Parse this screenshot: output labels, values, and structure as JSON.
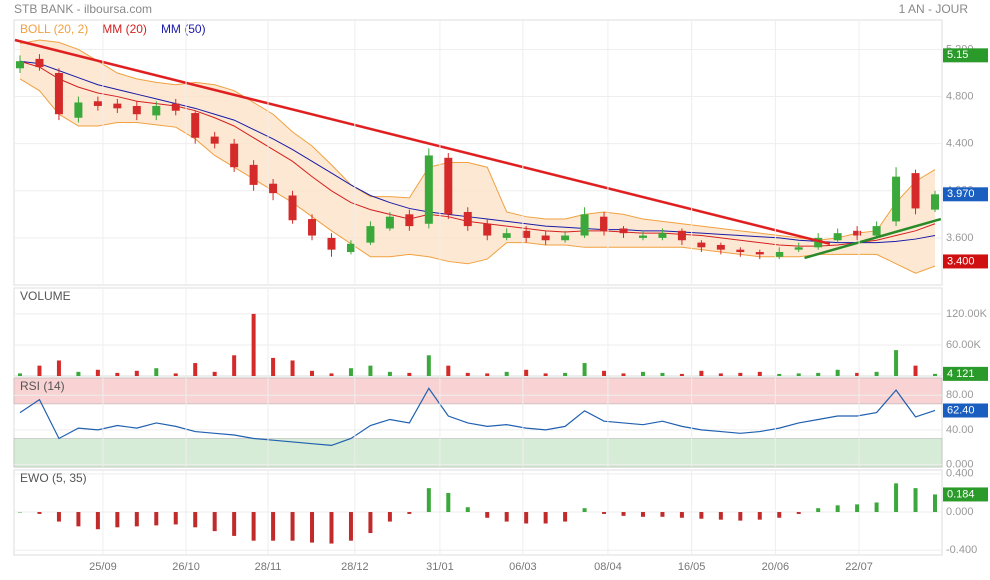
{
  "header": {
    "title": "STB BANK - ilboursa.com",
    "period": "1 AN - JOUR"
  },
  "chart_data": [
    {
      "type": "candlestick",
      "xlim": [
        0,
        47
      ],
      "ylim": [
        3.2,
        5.45
      ],
      "yticks": [
        {
          "value": 3.6,
          "label": "3.600"
        },
        {
          "value": 4.0,
          "label": "4.000"
        },
        {
          "value": 4.4,
          "label": "4.400"
        },
        {
          "value": 4.8,
          "label": "4.800"
        },
        {
          "value": 5.2,
          "label": "5.200"
        }
      ],
      "open": [
        5.04,
        5.12,
        5.0,
        4.62,
        4.76,
        4.74,
        4.72,
        4.64,
        4.74,
        4.66,
        4.46,
        4.4,
        4.22,
        4.06,
        3.96,
        3.76,
        3.6,
        3.48,
        3.56,
        3.68,
        3.8,
        3.72,
        4.28,
        3.82,
        3.72,
        3.6,
        3.66,
        3.62,
        3.58,
        3.62,
        3.78,
        3.68,
        3.6,
        3.6,
        3.66,
        3.56,
        3.54,
        3.5,
        3.48,
        3.44,
        3.5,
        3.52,
        3.58,
        3.66,
        3.62,
        3.74,
        4.15,
        3.84
      ],
      "high": [
        5.15,
        5.16,
        5.04,
        4.8,
        4.8,
        4.78,
        4.76,
        4.76,
        4.78,
        4.68,
        4.5,
        4.44,
        4.26,
        4.1,
        4.0,
        3.8,
        3.64,
        3.58,
        3.74,
        3.82,
        3.84,
        4.36,
        4.32,
        3.86,
        3.76,
        3.68,
        3.7,
        3.66,
        3.66,
        3.86,
        3.82,
        3.7,
        3.66,
        3.68,
        3.68,
        3.58,
        3.56,
        3.52,
        3.5,
        3.52,
        3.56,
        3.64,
        3.68,
        3.7,
        3.74,
        4.2,
        4.18,
        4.0
      ],
      "low": [
        5.0,
        5.02,
        4.6,
        4.58,
        4.68,
        4.66,
        4.6,
        4.6,
        4.64,
        4.4,
        4.36,
        4.16,
        4.0,
        3.92,
        3.72,
        3.58,
        3.44,
        3.46,
        3.54,
        3.66,
        3.66,
        3.68,
        3.76,
        3.66,
        3.58,
        3.58,
        3.56,
        3.54,
        3.56,
        3.6,
        3.62,
        3.6,
        3.58,
        3.58,
        3.54,
        3.48,
        3.46,
        3.44,
        3.42,
        3.42,
        3.48,
        3.5,
        3.56,
        3.58,
        3.6,
        3.7,
        3.8,
        3.82
      ],
      "close": [
        5.1,
        5.05,
        4.65,
        4.75,
        4.72,
        4.7,
        4.65,
        4.72,
        4.68,
        4.45,
        4.4,
        4.2,
        4.05,
        3.98,
        3.75,
        3.62,
        3.5,
        3.55,
        3.7,
        3.78,
        3.7,
        4.3,
        3.8,
        3.7,
        3.62,
        3.64,
        3.6,
        3.58,
        3.62,
        3.8,
        3.66,
        3.64,
        3.62,
        3.64,
        3.58,
        3.52,
        3.5,
        3.48,
        3.46,
        3.48,
        3.52,
        3.6,
        3.64,
        3.62,
        3.7,
        4.12,
        3.85,
        3.97
      ],
      "up_color": "#3aa83a",
      "down_color": "#d42a2a",
      "bollinger": {
        "name": "BOLL (20, 2)",
        "color": "#f0a040",
        "fill": "#fde3c8",
        "upper": [
          5.25,
          5.28,
          5.26,
          5.2,
          5.1,
          5.0,
          4.95,
          4.92,
          4.9,
          4.92,
          4.9,
          4.85,
          4.75,
          4.65,
          4.5,
          4.38,
          4.22,
          4.05,
          3.95,
          3.95,
          3.94,
          4.2,
          4.24,
          4.24,
          4.2,
          3.82,
          3.78,
          3.76,
          3.76,
          3.8,
          3.82,
          3.8,
          3.76,
          3.74,
          3.72,
          3.7,
          3.68,
          3.66,
          3.64,
          3.62,
          3.6,
          3.58,
          3.6,
          3.64,
          3.66,
          3.9,
          4.08,
          4.18
        ],
        "lower": [
          4.95,
          4.85,
          4.65,
          4.55,
          4.55,
          4.58,
          4.58,
          4.56,
          4.54,
          4.44,
          4.3,
          4.2,
          4.1,
          4.0,
          3.9,
          3.78,
          3.66,
          3.55,
          3.44,
          3.44,
          3.46,
          3.44,
          3.4,
          3.38,
          3.42,
          3.56,
          3.56,
          3.54,
          3.54,
          3.52,
          3.52,
          3.52,
          3.52,
          3.52,
          3.52,
          3.5,
          3.48,
          3.46,
          3.44,
          3.44,
          3.44,
          3.46,
          3.46,
          3.46,
          3.46,
          3.38,
          3.3,
          3.36
        ]
      },
      "series": [
        {
          "name": "MM (20)",
          "color": "#d42020",
          "values": [
            5.1,
            5.05,
            4.95,
            4.88,
            4.83,
            4.8,
            4.76,
            4.74,
            4.72,
            4.68,
            4.62,
            4.55,
            4.45,
            4.35,
            4.25,
            4.12,
            4.0,
            3.9,
            3.84,
            3.8,
            3.76,
            3.8,
            3.78,
            3.74,
            3.72,
            3.7,
            3.68,
            3.66,
            3.65,
            3.66,
            3.66,
            3.65,
            3.64,
            3.64,
            3.63,
            3.62,
            3.6,
            3.58,
            3.56,
            3.54,
            3.53,
            3.53,
            3.54,
            3.56,
            3.58,
            3.62,
            3.66,
            3.72
          ]
        },
        {
          "name": "MM (50)",
          "color": "#1a1aa8",
          "values": [
            5.1,
            5.08,
            5.02,
            4.96,
            4.9,
            4.86,
            4.82,
            4.78,
            4.74,
            4.7,
            4.65,
            4.6,
            4.52,
            4.44,
            4.35,
            4.25,
            4.15,
            4.05,
            3.96,
            3.9,
            3.85,
            3.82,
            3.8,
            3.78,
            3.76,
            3.74,
            3.72,
            3.7,
            3.69,
            3.68,
            3.67,
            3.67,
            3.66,
            3.66,
            3.65,
            3.64,
            3.63,
            3.62,
            3.61,
            3.6,
            3.58,
            3.57,
            3.56,
            3.56,
            3.56,
            3.57,
            3.59,
            3.62
          ]
        }
      ],
      "trendlines": [
        {
          "color": "#e02020",
          "x": [
            -0.26,
            41.6
          ],
          "y": [
            5.28,
            3.55
          ]
        },
        {
          "color": "#2a8a2a",
          "x": [
            40.3,
            47.3
          ],
          "y": [
            3.43,
            3.76
          ]
        }
      ],
      "last_labels": [
        {
          "value": 5.15,
          "label": "5.15",
          "color": "#2a9a2a"
        },
        {
          "value": 3.97,
          "label": "3.970",
          "color": "#1a5fc0"
        },
        {
          "value": 3.4,
          "label": "3.400",
          "color": "#d01010"
        }
      ]
    },
    {
      "type": "bar",
      "title": "VOLUME",
      "xlim": [
        0,
        47
      ],
      "ylim": [
        0,
        170000
      ],
      "yticks": [
        {
          "value": 60000,
          "label": "60.00K"
        },
        {
          "value": 120000,
          "label": "120.00K"
        }
      ],
      "values": [
        5000,
        20000,
        30000,
        8000,
        12000,
        6000,
        10000,
        15000,
        5000,
        25000,
        8000,
        40000,
        120000,
        35000,
        30000,
        10000,
        5000,
        15000,
        20000,
        8000,
        6000,
        40000,
        20000,
        6000,
        5000,
        8000,
        12000,
        5000,
        6000,
        25000,
        10000,
        5000,
        8000,
        6000,
        4000,
        10000,
        5000,
        6000,
        8000,
        4000,
        5000,
        6000,
        12000,
        6000,
        8000,
        50000,
        20000,
        4121
      ],
      "last_labels": [
        {
          "value": 4121,
          "label": "4 121",
          "color": "#2a9a2a"
        }
      ]
    },
    {
      "type": "line",
      "title": "RSI (14)",
      "color": "#2060b0",
      "xlim": [
        0,
        47
      ],
      "ylim": [
        -3,
        100
      ],
      "yticks": [
        {
          "value": 0,
          "label": "0.000"
        },
        {
          "value": 40,
          "label": "40.00"
        },
        {
          "value": 80,
          "label": "80.00"
        }
      ],
      "bands": [
        {
          "from": 70,
          "to": 100,
          "color": "#f9d3d3"
        },
        {
          "from": -3,
          "to": 30,
          "color": "#d6ecd6"
        }
      ],
      "values": [
        60,
        75,
        30,
        42,
        40,
        45,
        42,
        48,
        44,
        38,
        36,
        34,
        30,
        28,
        26,
        24,
        22,
        30,
        45,
        52,
        48,
        88,
        56,
        48,
        44,
        46,
        42,
        40,
        44,
        62,
        50,
        48,
        46,
        50,
        44,
        40,
        38,
        36,
        38,
        42,
        48,
        52,
        56,
        56,
        60,
        86,
        55,
        62.4
      ],
      "last_labels": [
        {
          "value": 62.4,
          "label": "62.40",
          "color": "#1a5fc0"
        }
      ]
    },
    {
      "type": "bar",
      "title": "EWO (5, 35)",
      "xlim": [
        0,
        47
      ],
      "ylim": [
        -0.45,
        0.44
      ],
      "yticks": [
        {
          "value": -0.4,
          "label": "-0.400"
        },
        {
          "value": 0,
          "label": "0.000"
        },
        {
          "value": 0.4,
          "label": "0.400"
        }
      ],
      "values": [
        0,
        -0.02,
        -0.1,
        -0.15,
        -0.18,
        -0.16,
        -0.15,
        -0.14,
        -0.13,
        -0.16,
        -0.2,
        -0.25,
        -0.3,
        -0.3,
        -0.3,
        -0.32,
        -0.33,
        -0.3,
        -0.22,
        -0.1,
        -0.02,
        0.25,
        0.2,
        0.05,
        -0.06,
        -0.1,
        -0.12,
        -0.12,
        -0.1,
        0.04,
        -0.02,
        -0.04,
        -0.05,
        -0.05,
        -0.06,
        -0.07,
        -0.08,
        -0.09,
        -0.08,
        -0.06,
        -0.02,
        0.04,
        0.07,
        0.08,
        0.1,
        0.3,
        0.25,
        0.184
      ],
      "last_labels": [
        {
          "value": 0.184,
          "label": "0.184",
          "color": "#2a9a2a"
        }
      ],
      "xticks": [
        {
          "value": 4.26,
          "label": "25/09"
        },
        {
          "value": 8.53,
          "label": "26/10"
        },
        {
          "value": 12.74,
          "label": "28/11"
        },
        {
          "value": 17.2,
          "label": "28/12"
        },
        {
          "value": 21.57,
          "label": "31/01"
        },
        {
          "value": 25.83,
          "label": "06/03"
        },
        {
          "value": 30.2,
          "label": "08/04"
        },
        {
          "value": 34.5,
          "label": "16/05"
        },
        {
          "value": 38.8,
          "label": "20/06"
        },
        {
          "value": 43.1,
          "label": "22/07"
        }
      ]
    }
  ]
}
